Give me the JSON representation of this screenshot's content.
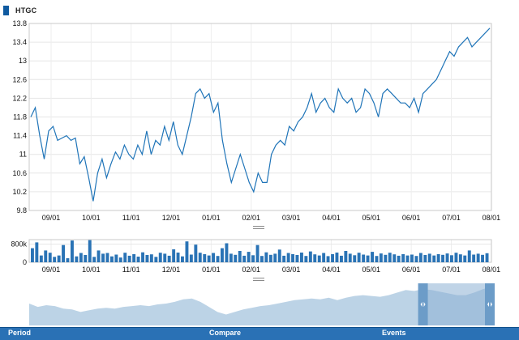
{
  "symbol": "HTGC",
  "colors": {
    "line": "#1f74b8",
    "volume": "#2a73b5",
    "navigator_fill": "#bcd3e6",
    "navigator_selection": "#8db1d4",
    "bottom_bar": "#2a71b5"
  },
  "price_axis": {
    "ticks": [
      "13.8",
      "13.4",
      "13",
      "12.6",
      "12.2",
      "11.8",
      "11.4",
      "11",
      "10.6",
      "10.2",
      "9.8"
    ],
    "min": 9.8,
    "max": 13.8
  },
  "date_axis": {
    "ticks": [
      "09/01",
      "10/01",
      "11/01",
      "12/01",
      "01/01",
      "02/01",
      "03/01",
      "04/01",
      "05/01",
      "06/01",
      "07/01",
      "08/01"
    ]
  },
  "volume_axis": {
    "ticks": [
      "800k",
      "0"
    ],
    "max": 1000000
  },
  "chart_data": {
    "type": "line",
    "title": "",
    "series": [
      {
        "name": "HTGC",
        "x": [
          "2012-08-13",
          "2012-08-16",
          "2012-08-20",
          "2012-08-24",
          "2012-08-28",
          "2012-08-31",
          "2012-09-04",
          "2012-09-07",
          "2012-09-10",
          "2012-09-13",
          "2012-09-17",
          "2012-09-20",
          "2012-09-24",
          "2012-09-27",
          "2012-10-01",
          "2012-10-04",
          "2012-10-08",
          "2012-10-11",
          "2012-10-15",
          "2012-10-18",
          "2012-10-22",
          "2012-10-25",
          "2012-10-29",
          "2012-11-01",
          "2012-11-05",
          "2012-11-08",
          "2012-11-12",
          "2012-11-15",
          "2012-11-19",
          "2012-11-22",
          "2012-11-26",
          "2012-11-29",
          "2012-12-03",
          "2012-12-06",
          "2012-12-10",
          "2012-12-13",
          "2012-12-17",
          "2012-12-20",
          "2012-12-24",
          "2012-12-27",
          "2012-12-31",
          "2013-01-03",
          "2013-01-07",
          "2013-01-10",
          "2013-01-14",
          "2013-01-17",
          "2013-01-21",
          "2013-01-24",
          "2013-01-28",
          "2013-01-31",
          "2013-02-04",
          "2013-02-07",
          "2013-02-11",
          "2013-02-14",
          "2013-02-18",
          "2013-02-21",
          "2013-02-25",
          "2013-02-28",
          "2013-03-04",
          "2013-03-07",
          "2013-03-11",
          "2013-03-14",
          "2013-03-18",
          "2013-03-21",
          "2013-03-25",
          "2013-03-28",
          "2013-04-01",
          "2013-04-04",
          "2013-04-08",
          "2013-04-11",
          "2013-04-15",
          "2013-04-18",
          "2013-04-22",
          "2013-04-25",
          "2013-04-29",
          "2013-05-02",
          "2013-05-06",
          "2013-05-09",
          "2013-05-13",
          "2013-05-16",
          "2013-05-20",
          "2013-05-23",
          "2013-05-27",
          "2013-05-30",
          "2013-06-03",
          "2013-06-06",
          "2013-06-10",
          "2013-06-13",
          "2013-06-17",
          "2013-06-20",
          "2013-06-24",
          "2013-06-27",
          "2013-07-01",
          "2013-07-04",
          "2013-07-08",
          "2013-07-11",
          "2013-07-15",
          "2013-07-18",
          "2013-07-22",
          "2013-07-25",
          "2013-07-29",
          "2013-08-01",
          "2013-08-05",
          "2013-08-08"
        ],
        "values": [
          11.8,
          12.0,
          11.4,
          10.9,
          11.5,
          11.6,
          11.3,
          11.35,
          11.4,
          11.3,
          11.35,
          10.8,
          10.95,
          10.5,
          10.0,
          10.6,
          10.9,
          10.5,
          10.8,
          11.05,
          10.9,
          11.2,
          11.0,
          10.9,
          11.2,
          11.0,
          11.5,
          11.0,
          11.3,
          11.2,
          11.6,
          11.3,
          11.7,
          11.2,
          11.0,
          11.4,
          11.8,
          12.3,
          12.4,
          12.2,
          12.3,
          11.9,
          12.1,
          11.3,
          10.8,
          10.4,
          10.7,
          11.0,
          10.7,
          10.4,
          10.2,
          10.6,
          10.4,
          10.4,
          11.0,
          11.2,
          11.3,
          11.2,
          11.6,
          11.5,
          11.7,
          11.8,
          12.0,
          12.3,
          11.9,
          12.1,
          12.2,
          12.0,
          11.9,
          12.4,
          12.2,
          12.1,
          12.2,
          11.9,
          12.0,
          12.4,
          12.3,
          12.1,
          11.8,
          12.3,
          12.4,
          12.3,
          12.2,
          12.1,
          12.1,
          12.0,
          12.2,
          11.9,
          12.3,
          12.4,
          12.5,
          12.6,
          12.8,
          13.0,
          13.2,
          13.1,
          13.3,
          13.4,
          13.5,
          13.3,
          13.4,
          13.5,
          13.6,
          13.7
        ]
      }
    ],
    "xlabel": "",
    "ylabel": "",
    "ylim": [
      9.8,
      13.8
    ],
    "grid": true,
    "legend": "top-left"
  },
  "volume_data": {
    "type": "bar",
    "values": [
      620000,
      880000,
      300000,
      520000,
      420000,
      240000,
      300000,
      760000,
      180000,
      960000,
      260000,
      410000,
      320000,
      980000,
      240000,
      520000,
      380000,
      410000,
      260000,
      340000,
      210000,
      420000,
      290000,
      360000,
      250000,
      440000,
      320000,
      350000,
      240000,
      420000,
      380000,
      290000,
      570000,
      430000,
      260000,
      920000,
      340000,
      780000,
      420000,
      360000,
      300000,
      410000,
      280000,
      620000,
      840000,
      380000,
      330000,
      500000,
      290000,
      460000,
      310000,
      760000,
      280000,
      440000,
      330000,
      380000,
      560000,
      290000,
      410000,
      360000,
      320000,
      430000,
      280000,
      480000,
      350000,
      300000,
      410000,
      270000,
      360000,
      430000,
      290000,
      500000,
      380000,
      310000,
      420000,
      340000,
      300000,
      460000,
      280000,
      390000,
      330000,
      420000,
      350000,
      290000,
      360000,
      300000,
      340000,
      280000,
      410000,
      320000,
      380000,
      300000,
      360000,
      330000,
      390000,
      310000,
      420000,
      350000,
      300000,
      520000,
      340000,
      380000,
      330000,
      400000
    ]
  },
  "navigator": {
    "selection": {
      "start_index": 88,
      "end_index": 103
    },
    "values": [
      11.6,
      11.2,
      11.4,
      11.3,
      11.0,
      10.9,
      10.6,
      10.8,
      11.0,
      11.1,
      11.0,
      11.2,
      11.3,
      11.4,
      11.3,
      11.5,
      11.6,
      11.8,
      12.1,
      12.2,
      11.8,
      11.2,
      10.6,
      10.3,
      10.6,
      10.9,
      11.1,
      11.3,
      11.4,
      11.6,
      11.8,
      12.0,
      12.1,
      12.2,
      12.1,
      12.3,
      12.0,
      12.3,
      12.5,
      12.6,
      12.5,
      12.4,
      12.6,
      12.9,
      13.2,
      13.1,
      13.3,
      13.2,
      13.0,
      12.8,
      12.6,
      12.6,
      12.9,
      13.3,
      13.6
    ]
  },
  "toolbar": {
    "period_label": "Period",
    "compare_label": "Compare",
    "events_label": "Events"
  }
}
